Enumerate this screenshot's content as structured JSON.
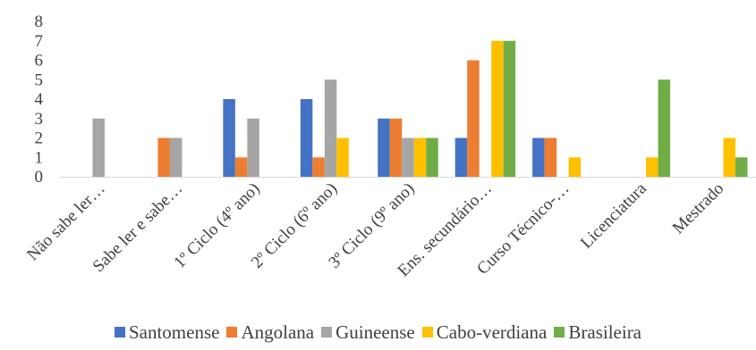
{
  "chart_data": {
    "type": "bar",
    "categories": [
      "Não sabe ler…",
      "Sabe ler e sabe…",
      "1º Ciclo (4º ano)",
      "2º Ciclo (6º ano)",
      "3º Ciclo (9º ano)",
      "Ens. secundário…",
      "Curso Técnico-…",
      "Licenciatura",
      "Mestrado"
    ],
    "series": [
      {
        "name": "Santomense",
        "color": "#4472C4",
        "values": [
          0,
          0,
          4,
          4,
          3,
          2,
          2,
          0,
          0
        ]
      },
      {
        "name": "Angolana",
        "color": "#ED7D31",
        "values": [
          0,
          2,
          1,
          1,
          3,
          6,
          2,
          0,
          0
        ]
      },
      {
        "name": "Guineense",
        "color": "#A5A5A5",
        "values": [
          3,
          2,
          3,
          5,
          2,
          0,
          0,
          0,
          0
        ]
      },
      {
        "name": "Cabo-verdiana",
        "color": "#FFC000",
        "values": [
          0,
          0,
          0,
          2,
          2,
          7,
          1,
          1,
          2
        ]
      },
      {
        "name": "Brasileira",
        "color": "#70AD47",
        "values": [
          0,
          0,
          0,
          0,
          2,
          7,
          0,
          5,
          1
        ]
      }
    ],
    "yticks": [
      "0",
      "1",
      "2",
      "3",
      "4",
      "5",
      "6",
      "7",
      "8"
    ],
    "ylim": [
      0,
      8
    ],
    "grid": false,
    "legend": "bottom"
  }
}
